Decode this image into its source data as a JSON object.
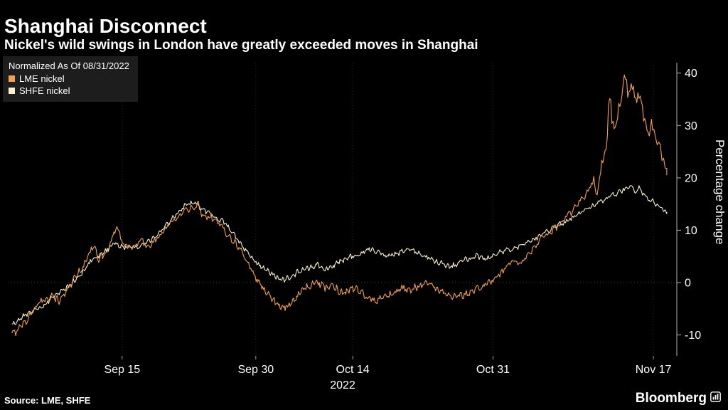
{
  "header": {
    "title": "Shanghai Disconnect",
    "subtitle": "Nickel's wild swings in London have greatly exceeded moves in Shanghai"
  },
  "legend": {
    "note": "Normalized As Of 08/31/2022",
    "items": [
      {
        "label": "LME nickel",
        "color": "#F5A04A"
      },
      {
        "label": "SHFE nickel",
        "color": "#F8F1C9"
      }
    ]
  },
  "chart_data": {
    "type": "line",
    "title": "Shanghai Disconnect",
    "xlabel": "2022",
    "ylabel": "Percentage change",
    "x_axis_year": "2022",
    "ylim": [
      -14,
      42
    ],
    "yticks": [
      40,
      30,
      20,
      10,
      0,
      -10
    ],
    "xticks": [
      {
        "label": "Sep 15",
        "day": 14
      },
      {
        "label": "Sep 30",
        "day": 29
      },
      {
        "label": "Oct 14",
        "day": 43
      },
      {
        "label": "Oct 31",
        "day": 60
      },
      {
        "label": "Nov 17",
        "day": 77
      }
    ],
    "x_range_days": [
      0,
      78
    ],
    "day_position_map": [
      [
        0,
        0.005
      ],
      [
        14,
        0.17
      ],
      [
        29,
        0.37
      ],
      [
        43,
        0.515
      ],
      [
        60,
        0.725
      ],
      [
        77,
        0.965
      ],
      [
        78,
        0.985
      ]
    ],
    "grid": "vertical-dotted",
    "legend_position": "top-left",
    "series": [
      {
        "name": "LME nickel",
        "color": "#F5A04A",
        "points": [
          [
            0,
            -10
          ],
          [
            1,
            -8.5
          ],
          [
            2,
            -7
          ],
          [
            3,
            -4.5
          ],
          [
            4,
            -3.5
          ],
          [
            5,
            -2.5
          ],
          [
            6,
            -3.5
          ],
          [
            7,
            -1.5
          ],
          [
            8,
            1
          ],
          [
            9,
            3
          ],
          [
            10,
            6
          ],
          [
            10.5,
            7.5
          ],
          [
            11,
            4.5
          ],
          [
            12,
            5.5
          ],
          [
            13,
            9.5
          ],
          [
            13.5,
            10.5
          ],
          [
            14,
            7.5
          ],
          [
            15,
            6.5
          ],
          [
            16,
            8
          ],
          [
            17,
            7
          ],
          [
            18,
            8.5
          ],
          [
            19,
            10.5
          ],
          [
            20,
            12.5
          ],
          [
            21,
            13.5
          ],
          [
            22,
            14.5
          ],
          [
            22.5,
            15
          ],
          [
            23,
            13
          ],
          [
            24,
            12.5
          ],
          [
            25,
            11
          ],
          [
            26,
            9
          ],
          [
            27,
            7
          ],
          [
            28,
            4
          ],
          [
            29,
            1
          ],
          [
            30,
            -1
          ],
          [
            31,
            -2.5
          ],
          [
            32,
            -4
          ],
          [
            33,
            -5
          ],
          [
            34,
            -4
          ],
          [
            35,
            -2.5
          ],
          [
            36,
            -1
          ],
          [
            37,
            -0.5
          ],
          [
            38,
            0
          ],
          [
            39,
            -1
          ],
          [
            40,
            -0.5
          ],
          [
            41,
            -1.5
          ],
          [
            42,
            -2
          ],
          [
            43,
            -1
          ],
          [
            44,
            -2
          ],
          [
            45,
            -3
          ],
          [
            46,
            -3.5
          ],
          [
            47,
            -2.5
          ],
          [
            48,
            -2
          ],
          [
            49,
            -1
          ],
          [
            50,
            -1.5
          ],
          [
            51,
            -0.5
          ],
          [
            52,
            0
          ],
          [
            53,
            -1
          ],
          [
            54,
            -2
          ],
          [
            55,
            -3
          ],
          [
            56,
            -2.5
          ],
          [
            57,
            -2
          ],
          [
            58,
            -1
          ],
          [
            59,
            -0.5
          ],
          [
            60,
            0.5
          ],
          [
            61,
            2
          ],
          [
            62,
            4
          ],
          [
            63,
            3.5
          ],
          [
            64,
            6
          ],
          [
            65,
            8
          ],
          [
            66,
            9.5
          ],
          [
            67,
            11
          ],
          [
            68,
            13
          ],
          [
            69,
            15
          ],
          [
            70,
            17
          ],
          [
            70.5,
            19.5
          ],
          [
            71,
            18
          ],
          [
            71.5,
            22
          ],
          [
            72,
            26
          ],
          [
            72.4,
            36
          ],
          [
            72.8,
            28
          ],
          [
            73.4,
            33
          ],
          [
            74,
            39.5
          ],
          [
            74.3,
            36
          ],
          [
            74.7,
            38
          ],
          [
            75,
            34
          ],
          [
            75.5,
            36
          ],
          [
            76,
            31
          ],
          [
            76.5,
            29
          ],
          [
            77,
            30
          ],
          [
            77.5,
            26
          ],
          [
            78,
            20.5
          ]
        ]
      },
      {
        "name": "SHFE nickel",
        "color": "#F8F1C9",
        "points": [
          [
            0,
            -8
          ],
          [
            1,
            -7
          ],
          [
            2,
            -6
          ],
          [
            3,
            -5
          ],
          [
            4,
            -4.5
          ],
          [
            5,
            -3
          ],
          [
            6,
            -2
          ],
          [
            7,
            -1
          ],
          [
            8,
            0.5
          ],
          [
            9,
            2
          ],
          [
            10,
            4
          ],
          [
            11,
            5
          ],
          [
            12,
            6
          ],
          [
            13,
            7.5
          ],
          [
            14,
            7
          ],
          [
            15,
            6.5
          ],
          [
            16,
            7
          ],
          [
            17,
            8
          ],
          [
            18,
            9
          ],
          [
            19,
            11
          ],
          [
            20,
            13
          ],
          [
            21,
            14.5
          ],
          [
            22,
            15.5
          ],
          [
            23,
            14
          ],
          [
            24,
            13
          ],
          [
            25,
            12
          ],
          [
            26,
            10.5
          ],
          [
            27,
            8
          ],
          [
            28,
            6
          ],
          [
            29,
            4
          ],
          [
            30,
            3
          ],
          [
            31,
            2
          ],
          [
            32,
            1
          ],
          [
            33,
            0.5
          ],
          [
            34,
            1
          ],
          [
            35,
            2
          ],
          [
            36,
            2.5
          ],
          [
            37,
            3
          ],
          [
            38,
            3.5
          ],
          [
            39,
            2.5
          ],
          [
            40,
            3
          ],
          [
            41,
            4
          ],
          [
            42,
            4.5
          ],
          [
            43,
            5
          ],
          [
            44,
            5.5
          ],
          [
            45,
            6.5
          ],
          [
            46,
            6
          ],
          [
            47,
            5
          ],
          [
            48,
            5.5
          ],
          [
            49,
            6
          ],
          [
            50,
            6.5
          ],
          [
            51,
            5.5
          ],
          [
            52,
            5
          ],
          [
            53,
            4
          ],
          [
            54,
            3.5
          ],
          [
            55,
            3
          ],
          [
            56,
            4
          ],
          [
            57,
            4.5
          ],
          [
            58,
            5
          ],
          [
            59,
            4.5
          ],
          [
            60,
            5
          ],
          [
            61,
            6
          ],
          [
            62,
            6.5
          ],
          [
            63,
            7
          ],
          [
            64,
            8
          ],
          [
            65,
            9
          ],
          [
            66,
            10
          ],
          [
            67,
            11
          ],
          [
            68,
            12
          ],
          [
            69,
            13
          ],
          [
            70,
            14
          ],
          [
            71,
            15
          ],
          [
            72,
            16
          ],
          [
            73,
            17
          ],
          [
            74,
            18
          ],
          [
            74.5,
            18.5
          ],
          [
            75,
            17.5
          ],
          [
            75.5,
            18
          ],
          [
            76,
            17
          ],
          [
            76.5,
            16
          ],
          [
            77,
            15.5
          ],
          [
            77.5,
            14.5
          ],
          [
            78,
            13.5
          ]
        ]
      }
    ]
  },
  "footer": {
    "source": "Source: LME, SHFE",
    "brand": "Bloomberg"
  }
}
